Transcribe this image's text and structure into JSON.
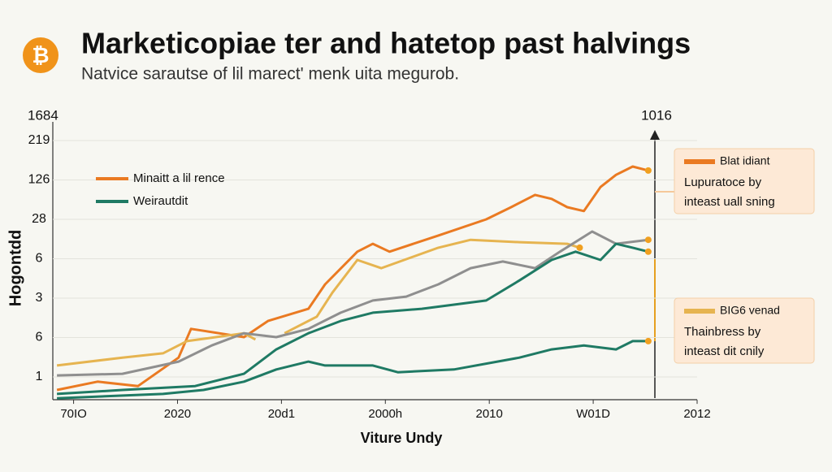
{
  "logo": "₿",
  "chart_data": {
    "type": "line",
    "title": "Marketicopiae ter and hatetop past halvings",
    "subtitle": "Natvice sarautse of lil marect' menk uita megurob.",
    "corner_left": "1684",
    "corner_right": "1016",
    "ylabel": "Hogontdd",
    "xlabel": "Viture Undy",
    "xlim": [
      -0.2,
      6
    ],
    "xticks": [
      {
        "value": 0,
        "label": "70IO"
      },
      {
        "value": 1,
        "label": "2020"
      },
      {
        "value": 2,
        "label": "20d1"
      },
      {
        "value": 3,
        "label": "2000h"
      },
      {
        "value": 4,
        "label": "2010"
      },
      {
        "value": 5,
        "label": "W01D"
      },
      {
        "value": 6,
        "label": "2012"
      }
    ],
    "ylim": [
      -0.6,
      6.5
    ],
    "yticks": [
      {
        "value": 6,
        "label": "219"
      },
      {
        "value": 5,
        "label": "126"
      },
      {
        "value": 4,
        "label": "28"
      },
      {
        "value": 3,
        "label": "6"
      },
      {
        "value": 2,
        "label": "3"
      },
      {
        "value": 1,
        "label": "6"
      },
      {
        "value": 0,
        "label": "1"
      }
    ],
    "grid": true,
    "series": [
      {
        "name": "Minaitt a lil rence",
        "color": "#ea7a22",
        "x": [
          -0.16,
          0.23,
          0.62,
          1.01,
          1.13,
          1.64,
          1.87,
          2.26,
          2.42,
          2.73,
          2.88,
          3.04,
          3.51,
          3.97,
          4.21,
          4.44,
          4.6,
          4.75,
          4.91,
          5.07,
          5.22,
          5.38,
          5.53
        ],
        "values": [
          -0.33,
          -0.12,
          -0.23,
          0.49,
          1.22,
          1.01,
          1.42,
          1.73,
          2.35,
          3.18,
          3.38,
          3.18,
          3.59,
          4.0,
          4.31,
          4.62,
          4.52,
          4.31,
          4.21,
          4.82,
          5.13,
          5.34,
          5.24
        ]
      },
      {
        "color": "#e6b450",
        "x": [
          -0.16,
          0.47,
          0.86,
          1.09,
          1.64,
          1.75,
          null,
          2.03,
          2.34,
          2.49,
          2.73,
          2.96,
          3.51,
          3.82,
          4.29,
          4.75,
          4.87
        ],
        "values": [
          0.29,
          0.49,
          0.6,
          0.91,
          1.11,
          0.95,
          null,
          1.11,
          1.53,
          2.14,
          2.97,
          2.76,
          3.28,
          3.48,
          3.42,
          3.38,
          3.28
        ]
      },
      {
        "color": "#8f8f8f",
        "x": [
          -0.16,
          0.47,
          1.01,
          1.33,
          1.64,
          1.95,
          2.26,
          2.57,
          2.88,
          3.2,
          3.51,
          3.82,
          4.13,
          4.44,
          4.68,
          4.99,
          5.22,
          5.53
        ],
        "values": [
          0.04,
          0.08,
          0.39,
          0.8,
          1.11,
          1.01,
          1.22,
          1.63,
          1.94,
          2.04,
          2.35,
          2.76,
          2.93,
          2.76,
          3.18,
          3.69,
          3.38,
          3.48
        ]
      },
      {
        "name": "Weirautdit",
        "color": "#1f7a64",
        "x": [
          -0.16,
          0.47,
          1.17,
          1.64,
          1.95,
          2.26,
          2.57,
          2.88,
          3.35,
          3.97,
          4.29,
          4.6,
          4.83,
          5.07,
          5.22,
          5.38,
          5.53
        ],
        "values": [
          -0.43,
          -0.33,
          -0.23,
          0.08,
          0.7,
          1.11,
          1.42,
          1.63,
          1.73,
          1.94,
          2.45,
          2.97,
          3.18,
          2.97,
          3.38,
          3.28,
          3.18
        ]
      },
      {
        "color": "#1f7a64",
        "x": [
          -0.16,
          0.86,
          1.25,
          1.64,
          1.95,
          2.26,
          2.42,
          2.88,
          3.12,
          3.66,
          4.29,
          4.6,
          4.91,
          5.22,
          5.38,
          5.53
        ],
        "values": [
          -0.54,
          -0.43,
          -0.33,
          -0.12,
          0.19,
          0.39,
          0.29,
          0.29,
          0.12,
          0.19,
          0.49,
          0.7,
          0.8,
          0.7,
          0.91,
          0.91
        ]
      }
    ],
    "annotations": [
      {
        "title": "Blat idiant",
        "color": "#ea7a22",
        "lines": [
          "Lupuratoce by",
          "inteast uall sning"
        ]
      },
      {
        "title": "BIG6 venad",
        "color": "#e6b450",
        "lines": [
          "Thainbress by",
          "inteast dit cnily"
        ]
      }
    ]
  }
}
